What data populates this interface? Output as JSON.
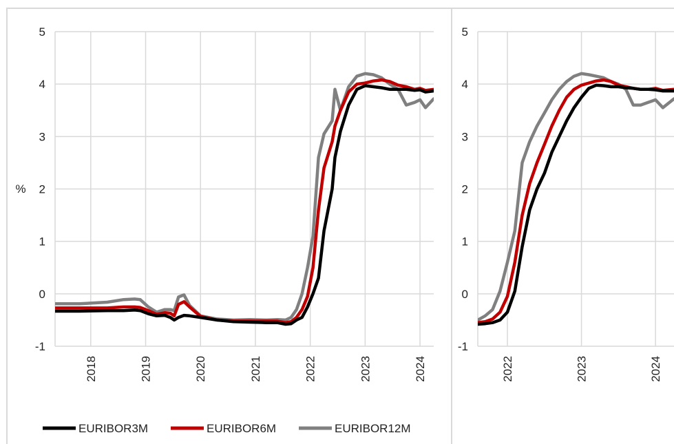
{
  "colors": {
    "EURIBOR3M": "#000000",
    "EURIBOR6M": "#c00000",
    "EURIBOR12M": "#808080",
    "grid": "#d9d9d9",
    "panel_border": "#d9d9d9"
  },
  "legend": [
    "EURIBOR3M",
    "EURIBOR6M",
    "EURIBOR12M"
  ],
  "chart_data": [
    {
      "type": "line",
      "title": "",
      "xlabel": "",
      "ylabel": "%",
      "ylim": [
        -1,
        5
      ],
      "yticks": [
        "-1",
        "0",
        "1",
        "2",
        "3",
        "4",
        "5"
      ],
      "xlim": [
        2017.35,
        2024.25
      ],
      "xticks": [
        {
          "label": "2018",
          "x": 2018.0
        },
        {
          "label": "2019",
          "x": 2019.0
        },
        {
          "label": "2020",
          "x": 2020.0
        },
        {
          "label": "2021",
          "x": 2021.0
        },
        {
          "label": "2022",
          "x": 2022.0
        },
        {
          "label": "2023",
          "x": 2023.0
        },
        {
          "label": "2024",
          "x": 2024.0
        }
      ],
      "grid": true,
      "legend_position": "bottom",
      "series": [
        {
          "name": "EURIBOR3M",
          "x": [
            2017.35,
            2017.8,
            2018.3,
            2018.6,
            2018.8,
            2018.9,
            2019.05,
            2019.2,
            2019.35,
            2019.45,
            2019.52,
            2019.6,
            2019.7,
            2019.8,
            2020.0,
            2020.3,
            2020.6,
            2020.9,
            2021.2,
            2021.4,
            2021.55,
            2021.65,
            2021.75,
            2021.85,
            2021.95,
            2022.05,
            2022.15,
            2022.25,
            2022.4,
            2022.45,
            2022.55,
            2022.7,
            2022.85,
            2023.0,
            2023.15,
            2023.3,
            2023.45,
            2023.6,
            2023.75,
            2023.9,
            2024.0,
            2024.1,
            2024.25
          ],
          "y": [
            -0.33,
            -0.33,
            -0.32,
            -0.32,
            -0.31,
            -0.32,
            -0.38,
            -0.42,
            -0.41,
            -0.45,
            -0.5,
            -0.45,
            -0.41,
            -0.42,
            -0.45,
            -0.5,
            -0.53,
            -0.54,
            -0.55,
            -0.55,
            -0.58,
            -0.57,
            -0.5,
            -0.45,
            -0.25,
            0.0,
            0.3,
            1.2,
            2.0,
            2.6,
            3.1,
            3.6,
            3.9,
            3.97,
            3.95,
            3.93,
            3.9,
            3.9,
            3.9,
            3.88,
            3.89,
            3.85,
            3.87
          ]
        },
        {
          "name": "EURIBOR6M",
          "x": [
            2017.35,
            2017.8,
            2018.3,
            2018.6,
            2018.8,
            2018.9,
            2019.05,
            2019.2,
            2019.35,
            2019.45,
            2019.52,
            2019.6,
            2019.7,
            2019.8,
            2020.0,
            2020.3,
            2020.6,
            2020.9,
            2021.2,
            2021.4,
            2021.55,
            2021.65,
            2021.75,
            2021.85,
            2021.95,
            2022.05,
            2022.15,
            2022.25,
            2022.4,
            2022.45,
            2022.55,
            2022.7,
            2022.85,
            2023.0,
            2023.15,
            2023.3,
            2023.45,
            2023.6,
            2023.75,
            2023.9,
            2024.0,
            2024.1,
            2024.25
          ],
          "y": [
            -0.27,
            -0.27,
            -0.27,
            -0.25,
            -0.25,
            -0.26,
            -0.32,
            -0.39,
            -0.36,
            -0.37,
            -0.42,
            -0.2,
            -0.15,
            -0.25,
            -0.43,
            -0.5,
            -0.52,
            -0.52,
            -0.52,
            -0.52,
            -0.55,
            -0.53,
            -0.45,
            -0.3,
            -0.05,
            0.5,
            1.6,
            2.4,
            2.9,
            3.2,
            3.5,
            3.85,
            4.0,
            4.02,
            4.06,
            4.08,
            4.05,
            3.98,
            3.95,
            3.9,
            3.92,
            3.88,
            3.9
          ]
        },
        {
          "name": "EURIBOR12M",
          "x": [
            2017.35,
            2017.8,
            2018.3,
            2018.6,
            2018.8,
            2018.9,
            2019.05,
            2019.2,
            2019.35,
            2019.45,
            2019.52,
            2019.6,
            2019.7,
            2019.8,
            2020.0,
            2020.3,
            2020.6,
            2020.9,
            2021.2,
            2021.4,
            2021.55,
            2021.65,
            2021.75,
            2021.85,
            2021.95,
            2022.05,
            2022.15,
            2022.25,
            2022.4,
            2022.45,
            2022.55,
            2022.7,
            2022.85,
            2023.0,
            2023.15,
            2023.3,
            2023.45,
            2023.6,
            2023.75,
            2023.9,
            2024.0,
            2024.1,
            2024.25
          ],
          "y": [
            -0.19,
            -0.19,
            -0.16,
            -0.11,
            -0.1,
            -0.11,
            -0.25,
            -0.35,
            -0.3,
            -0.3,
            -0.32,
            -0.06,
            -0.02,
            -0.22,
            -0.42,
            -0.48,
            -0.5,
            -0.49,
            -0.5,
            -0.49,
            -0.5,
            -0.45,
            -0.3,
            0.0,
            0.5,
            1.1,
            2.6,
            3.05,
            3.3,
            3.9,
            3.5,
            3.95,
            4.15,
            4.2,
            4.18,
            4.12,
            4.0,
            3.9,
            3.6,
            3.65,
            3.7,
            3.55,
            3.72
          ]
        }
      ]
    },
    {
      "type": "line",
      "title": "",
      "xlabel": "",
      "ylabel": "",
      "ylim": [
        -1,
        5
      ],
      "yticks": [
        "-1",
        "0",
        "1",
        "2",
        "3",
        "4",
        "5"
      ],
      "xlim": [
        2021.6,
        2024.25
      ],
      "xticks": [
        {
          "label": "2022",
          "x": 2022.0
        },
        {
          "label": "2023",
          "x": 2023.0
        },
        {
          "label": "2024",
          "x": 2024.0
        }
      ],
      "grid": true,
      "series": [
        {
          "name": "EURIBOR3M",
          "x": [
            2021.6,
            2021.7,
            2021.8,
            2021.9,
            2022.0,
            2022.1,
            2022.2,
            2022.3,
            2022.4,
            2022.5,
            2022.6,
            2022.7,
            2022.8,
            2022.9,
            2023.0,
            2023.1,
            2023.2,
            2023.3,
            2023.4,
            2023.5,
            2023.6,
            2023.7,
            2023.8,
            2023.9,
            2024.0,
            2024.1,
            2024.25
          ],
          "y": [
            -0.58,
            -0.57,
            -0.55,
            -0.5,
            -0.35,
            0.05,
            0.9,
            1.6,
            2.0,
            2.3,
            2.7,
            3.0,
            3.3,
            3.55,
            3.75,
            3.92,
            3.98,
            3.97,
            3.95,
            3.95,
            3.93,
            3.92,
            3.9,
            3.9,
            3.89,
            3.87,
            3.87
          ]
        },
        {
          "name": "EURIBOR6M",
          "x": [
            2021.6,
            2021.7,
            2021.8,
            2021.9,
            2022.0,
            2022.1,
            2022.2,
            2022.3,
            2022.4,
            2022.5,
            2022.6,
            2022.7,
            2022.8,
            2022.9,
            2023.0,
            2023.1,
            2023.2,
            2023.3,
            2023.4,
            2023.5,
            2023.6,
            2023.7,
            2023.8,
            2023.9,
            2024.0,
            2024.1,
            2024.25
          ],
          "y": [
            -0.55,
            -0.53,
            -0.48,
            -0.35,
            -0.05,
            0.6,
            1.5,
            2.1,
            2.5,
            2.85,
            3.2,
            3.5,
            3.75,
            3.9,
            3.98,
            4.02,
            4.06,
            4.08,
            4.05,
            3.98,
            3.95,
            3.92,
            3.9,
            3.9,
            3.92,
            3.88,
            3.9
          ]
        },
        {
          "name": "EURIBOR12M",
          "x": [
            2021.6,
            2021.7,
            2021.8,
            2021.9,
            2022.0,
            2022.1,
            2022.2,
            2022.3,
            2022.4,
            2022.5,
            2022.6,
            2022.7,
            2022.8,
            2022.9,
            2023.0,
            2023.1,
            2023.2,
            2023.3,
            2023.4,
            2023.5,
            2023.6,
            2023.7,
            2023.8,
            2023.9,
            2024.0,
            2024.1,
            2024.25
          ],
          "y": [
            -0.5,
            -0.42,
            -0.3,
            0.05,
            0.6,
            1.2,
            2.5,
            2.9,
            3.2,
            3.45,
            3.7,
            3.9,
            4.05,
            4.15,
            4.2,
            4.18,
            4.15,
            4.12,
            4.05,
            4.0,
            3.9,
            3.6,
            3.6,
            3.65,
            3.7,
            3.55,
            3.72
          ]
        }
      ]
    }
  ]
}
